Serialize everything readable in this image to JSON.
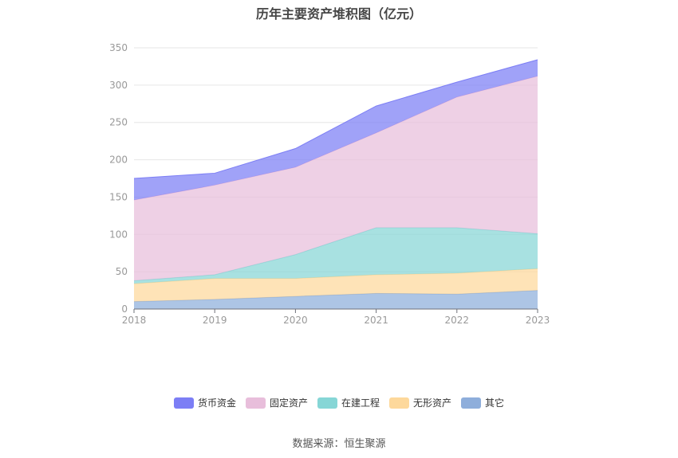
{
  "chart_data": {
    "type": "area",
    "stacked": true,
    "title": "历年主要资产堆积图（亿元）",
    "categories": [
      "2018",
      "2019",
      "2020",
      "2021",
      "2022",
      "2023"
    ],
    "ylim": [
      0,
      350
    ],
    "yticks": [
      0,
      50,
      100,
      150,
      200,
      250,
      300,
      350
    ],
    "grid": true,
    "legend_position": "bottom",
    "series": [
      {
        "name": "其它",
        "color": "#8eaedb",
        "values": [
          10,
          13,
          17,
          21,
          20,
          25
        ]
      },
      {
        "name": "无形资产",
        "color": "#fdd89b",
        "values": [
          24,
          28,
          24,
          25,
          28,
          29
        ]
      },
      {
        "name": "在建工程",
        "color": "#86d6d6",
        "values": [
          4,
          5,
          32,
          63,
          61,
          47
        ]
      },
      {
        "name": "固定资产",
        "color": "#e8bedb",
        "values": [
          108,
          120,
          117,
          127,
          175,
          211
        ]
      },
      {
        "name": "货币资金",
        "color": "#7c7ef5",
        "values": [
          29,
          16,
          25,
          36,
          20,
          22
        ]
      }
    ],
    "legend_order": [
      "货币资金",
      "固定资产",
      "在建工程",
      "无形资产",
      "其它"
    ]
  },
  "source_text": "数据来源：恒生聚源"
}
